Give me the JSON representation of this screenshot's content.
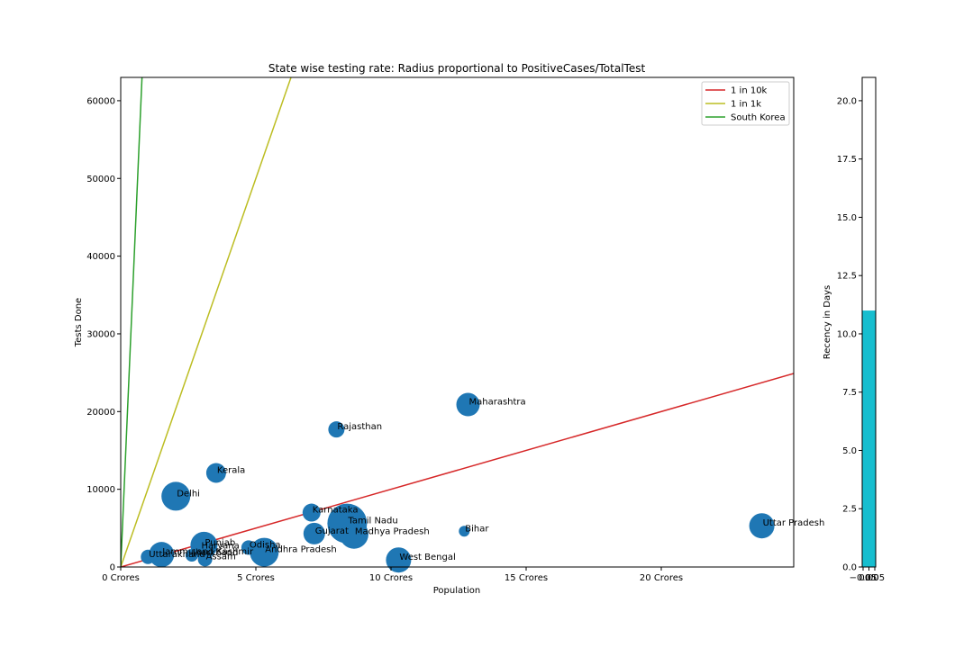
{
  "chart_data": [
    {
      "type": "scatter",
      "title": "State wise testing rate: Radius proportional to PositiveCases/TotalTest",
      "xlabel": "Population",
      "ylabel": "Tests Done",
      "xlim": [
        0,
        24.9
      ],
      "ylim": [
        0,
        63000
      ],
      "x_unit": "Crores",
      "x_ticks": [
        {
          "value": 0,
          "label": "0 Crores"
        },
        {
          "value": 5,
          "label": "5 Crores"
        },
        {
          "value": 10,
          "label": "10 Crores"
        },
        {
          "value": 15,
          "label": "15 Crores"
        },
        {
          "value": 20,
          "label": "20 Crores"
        }
      ],
      "y_ticks": [
        {
          "value": 0,
          "label": "0"
        },
        {
          "value": 10000,
          "label": "10000"
        },
        {
          "value": 20000,
          "label": "20000"
        },
        {
          "value": 30000,
          "label": "30000"
        },
        {
          "value": 40000,
          "label": "40000"
        },
        {
          "value": 50000,
          "label": "50000"
        },
        {
          "value": 60000,
          "label": "60000"
        }
      ],
      "grid": false,
      "marker_color": "#1f77b4",
      "points": [
        {
          "name": "Maharashtra",
          "x": 12.85,
          "y": 20900,
          "r": 13
        },
        {
          "name": "Rajasthan",
          "x": 7.98,
          "y": 17700,
          "r": 9
        },
        {
          "name": "Kerala",
          "x": 3.53,
          "y": 12100,
          "r": 11
        },
        {
          "name": "Delhi",
          "x": 2.04,
          "y": 9100,
          "r": 16
        },
        {
          "name": "Karnataka",
          "x": 7.06,
          "y": 7000,
          "r": 10
        },
        {
          "name": "Tamil Nadu",
          "x": 8.38,
          "y": 5600,
          "r": 22
        },
        {
          "name": "Gujarat",
          "x": 7.16,
          "y": 4300,
          "r": 12
        },
        {
          "name": "Madhya Pradesh",
          "x": 8.63,
          "y": 4200,
          "r": 16
        },
        {
          "name": "Bihar",
          "x": 12.71,
          "y": 4600,
          "r": 6
        },
        {
          "name": "Uttar Pradesh",
          "x": 23.72,
          "y": 5300,
          "r": 14
        },
        {
          "name": "Punjab",
          "x": 3.08,
          "y": 2800,
          "r": 15
        },
        {
          "name": "Haryana",
          "x": 2.95,
          "y": 2400,
          "r": 8
        },
        {
          "name": "Odisha",
          "x": 4.73,
          "y": 2500,
          "r": 8
        },
        {
          "name": "Andhra Pradesh",
          "x": 5.31,
          "y": 1900,
          "r": 16
        },
        {
          "name": "Jammu and Kashmir",
          "x": 1.51,
          "y": 1600,
          "r": 14
        },
        {
          "name": "Jharkhand",
          "x": 2.63,
          "y": 1500,
          "r": 7
        },
        {
          "name": "Uttarakhand",
          "x": 1.01,
          "y": 1300,
          "r": 8
        },
        {
          "name": "Assam",
          "x": 3.12,
          "y": 1000,
          "r": 8
        },
        {
          "name": "West Bengal",
          "x": 10.28,
          "y": 900,
          "r": 14
        }
      ],
      "lines": [
        {
          "name": "1 in 10k",
          "color": "#d62728",
          "slope": 1000
        },
        {
          "name": "1 in 1k",
          "color": "#bcbd22",
          "slope": 10000
        },
        {
          "name": "South Korea",
          "color": "#2ca02c",
          "slope": 80000
        }
      ],
      "legend_position": "top-right"
    },
    {
      "type": "bar",
      "title": "",
      "xlabel": "",
      "ylabel": "Recency in Days",
      "ylim": [
        0,
        21
      ],
      "x_tick_labels": [
        "−0.05",
        "0.00",
        "0.05"
      ],
      "y_ticks": [
        {
          "value": 0,
          "label": "0.0"
        },
        {
          "value": 2.5,
          "label": "2.5"
        },
        {
          "value": 5,
          "label": "5.0"
        },
        {
          "value": 7.5,
          "label": "7.5"
        },
        {
          "value": 10,
          "label": "10.0"
        },
        {
          "value": 12.5,
          "label": "12.5"
        },
        {
          "value": 15,
          "label": "15.0"
        },
        {
          "value": 17.5,
          "label": "17.5"
        },
        {
          "value": 20,
          "label": "20.0"
        }
      ],
      "values": [
        11
      ],
      "bar_color": "#17becf"
    }
  ]
}
